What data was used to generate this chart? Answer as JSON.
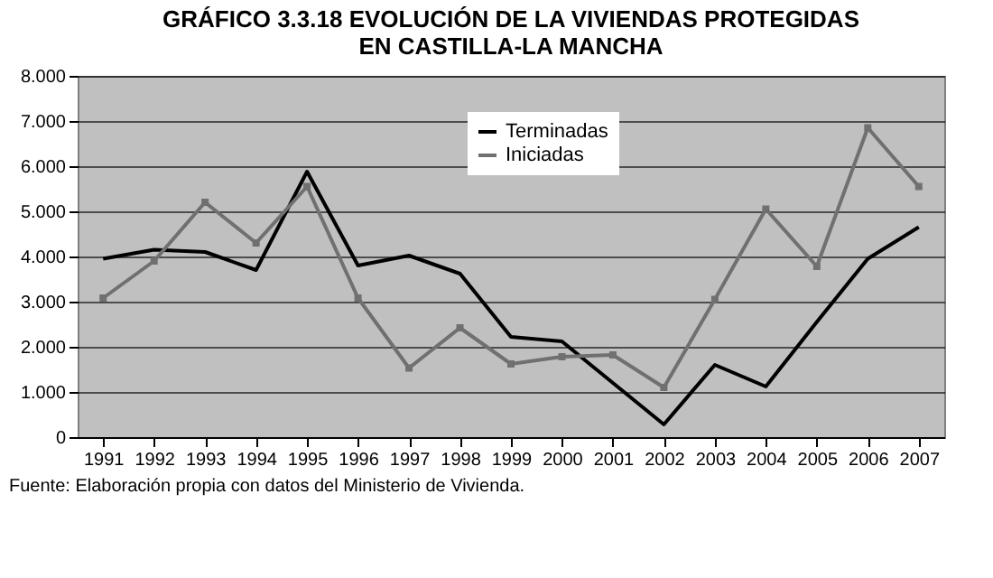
{
  "chart_data": {
    "type": "line",
    "title": "GRÁFICO 3.3.18 EVOLUCIÓN DE LA VIVIENDAS PROTEGIDAS\nEN CASTILLA-LA MANCHA",
    "categories": [
      "1991",
      "1992",
      "1993",
      "1994",
      "1995",
      "1996",
      "1997",
      "1998",
      "1999",
      "2000",
      "2001",
      "2002",
      "2003",
      "2004",
      "2005",
      "2006",
      "2007"
    ],
    "series": [
      {
        "name": "Terminadas",
        "color": "#000000",
        "marker": "none",
        "values": [
          3950,
          4150,
          4100,
          3700,
          5880,
          3800,
          4020,
          3620,
          2220,
          2120,
          1200,
          280,
          1600,
          1120,
          2550,
          3950,
          4650
        ]
      },
      {
        "name": "Iniciadas",
        "color": "#707070",
        "marker": "square",
        "values": [
          3080,
          3900,
          5200,
          4300,
          5550,
          3080,
          1530,
          2420,
          1620,
          1780,
          1820,
          1100,
          3050,
          5050,
          3780,
          6850,
          5550
        ]
      }
    ],
    "ylim": [
      0,
      8000
    ],
    "yticks": [
      {
        "value": 0,
        "label": "0"
      },
      {
        "value": 1000,
        "label": "1.000"
      },
      {
        "value": 2000,
        "label": "2.000"
      },
      {
        "value": 3000,
        "label": "3.000"
      },
      {
        "value": 4000,
        "label": "4.000"
      },
      {
        "value": 5000,
        "label": "5.000"
      },
      {
        "value": 6000,
        "label": "6.000"
      },
      {
        "value": 7000,
        "label": "7.000"
      },
      {
        "value": 8000,
        "label": "8.000"
      }
    ],
    "grid": "y",
    "legend": "top",
    "annotations": [
      "Fuente: Elaboración propia con datos del Ministerio de Vivienda."
    ]
  }
}
